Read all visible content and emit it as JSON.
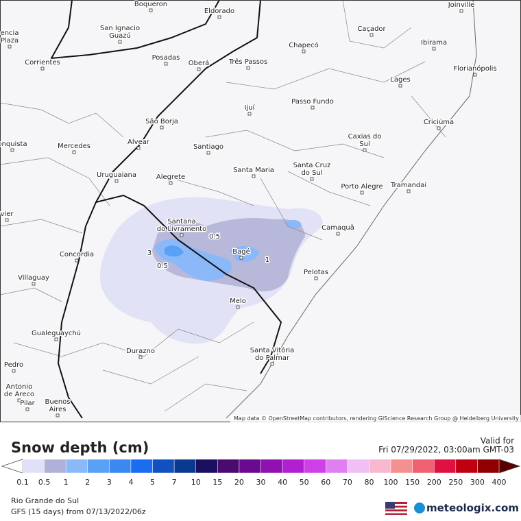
{
  "map": {
    "places": [
      [
        "Boqueron"
      ],
      [
        "Eldorado"
      ],
      [
        "Joinville"
      ],
      [
        "San Ignacio",
        "Guazú"
      ],
      [
        "Caçador"
      ],
      [
        "Chapecó"
      ],
      [
        "Ibirama"
      ],
      [
        "Corrientes"
      ],
      [
        "Posadas"
      ],
      [
        "Oberá"
      ],
      [
        "Três Passos"
      ],
      [
        "Florianópolis"
      ],
      [
        "Lages"
      ],
      [
        "Ijuí"
      ],
      [
        "Passo Fundo"
      ],
      [
        "Criciúma"
      ],
      [
        "São Borja"
      ],
      [
        "Caxias do",
        "Sul"
      ],
      [
        "Alvear"
      ],
      [
        "Santiago"
      ],
      [
        "Mercedes"
      ],
      [
        "Santa Cruz",
        "do Sul"
      ],
      [
        "Santa Maria"
      ],
      [
        "Uruguaiana"
      ],
      [
        "Alegrete"
      ],
      [
        "Porto Alegre"
      ],
      [
        "Tramandaí"
      ],
      [
        "Santana",
        "do Livramento"
      ],
      [
        "Camaquã"
      ],
      [
        "Concordia"
      ],
      [
        "Bagé"
      ],
      [
        "Villaguay"
      ],
      [
        "Pelotas"
      ],
      [
        "Melo"
      ],
      [
        "Gualeguaychú"
      ],
      [
        "Durazno"
      ],
      [
        "Santa Vitória",
        "do Palmar"
      ],
      [
        "Buenos",
        "Aires"
      ],
      [
        "encia",
        "Plaza"
      ],
      [
        "onquista"
      ],
      [
        "vier"
      ],
      [
        "Pedro"
      ],
      [
        "Antonio",
        "de Areco"
      ],
      [
        "Pilar"
      ]
    ],
    "contour_labels": [
      "0.5",
      "3",
      "0.5",
      "1"
    ],
    "attribution": "Map data © OpenStreetMap contributors, rendering GIScience Research Group @ Heidelberg University"
  },
  "legend": {
    "title": "Snow depth (cm)",
    "valid_label": "Valid for",
    "valid_time": "Fri 07/29/2022, 03:00am GMT-03",
    "ticks": [
      "0.1",
      "0.5",
      "1",
      "2",
      "3",
      "4",
      "5",
      "7",
      "10",
      "15",
      "20",
      "30",
      "40",
      "50",
      "60",
      "70",
      "80",
      "100",
      "150",
      "200",
      "250",
      "300",
      "400"
    ],
    "colors": [
      "#e0e0f8",
      "#b0b0d8",
      "#8ab8f8",
      "#5aa0f4",
      "#3a88f0",
      "#1a6cf0",
      "#1050c0",
      "#0a3a90",
      "#1a1060",
      "#4a0a70",
      "#6a0a90",
      "#9010b0",
      "#b020d0",
      "#d040e8",
      "#e080f0",
      "#f0c0f4",
      "#f8b8d0",
      "#f49090",
      "#f06070",
      "#e01040",
      "#c00010",
      "#900000"
    ]
  },
  "footer": {
    "region": "Rio Grande do Sul",
    "model": "GFS (15 days) from 07/13/2022/06z",
    "brand": "meteologix.com"
  }
}
